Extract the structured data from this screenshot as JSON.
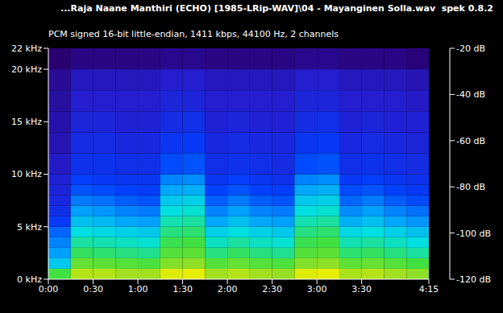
{
  "chart_data": {
    "type": "heatmap",
    "title": "...Raja Naane Manthiri (ECHO) [1985-LRip-WAV]\\04 - Mayanginen Solla.wav",
    "software": "spek 0.8.2",
    "subtitle": "PCM signed 16-bit little-endian, 1411 kbps, 44100 Hz, 2 channels",
    "xlim": [
      0,
      255
    ],
    "xticks": [
      {
        "value": 0,
        "label": "0:00"
      },
      {
        "value": 30,
        "label": "0:30"
      },
      {
        "value": 60,
        "label": "1:00"
      },
      {
        "value": 90,
        "label": "1:30"
      },
      {
        "value": 120,
        "label": "2:00"
      },
      {
        "value": 150,
        "label": "2:30"
      },
      {
        "value": 180,
        "label": "3:00"
      },
      {
        "value": 210,
        "label": "3:30"
      },
      {
        "value": 255,
        "label": "4:15"
      }
    ],
    "ylim": [
      0,
      22
    ],
    "yticks": [
      {
        "value": 0,
        "label": "0 kHz"
      },
      {
        "value": 5,
        "label": "5 kHz"
      },
      {
        "value": 10,
        "label": "10 kHz"
      },
      {
        "value": 15,
        "label": "15 kHz"
      },
      {
        "value": 20,
        "label": "20 kHz"
      },
      {
        "value": 22,
        "label": "22 kHz"
      }
    ],
    "x_bins": [
      0,
      15,
      30,
      45,
      60,
      75,
      90,
      105,
      120,
      135,
      150,
      165,
      180,
      195,
      210,
      225,
      240,
      255
    ],
    "y_bins": [
      0,
      1,
      2,
      3,
      4,
      5,
      6,
      7,
      8,
      9,
      10,
      12,
      14,
      16,
      18,
      20,
      22
    ],
    "cells": [
      [
        -62,
        -75,
        -80,
        -83,
        -86,
        -92,
        -95,
        -97,
        -98,
        -99,
        -101,
        -103,
        -104,
        -105,
        -106,
        -110
      ],
      [
        -50,
        -58,
        -64,
        -68,
        -72,
        -76,
        -80,
        -84,
        -88,
        -91,
        -94,
        -96,
        -98,
        -100,
        -102,
        -108
      ],
      [
        -50,
        -59,
        -65,
        -69,
        -73,
        -77,
        -81,
        -85,
        -89,
        -92,
        -94,
        -96,
        -98,
        -100,
        -102,
        -108
      ],
      [
        -52,
        -60,
        -66,
        -70,
        -74,
        -79,
        -83,
        -87,
        -90,
        -93,
        -95,
        -97,
        -99,
        -100,
        -102,
        -108
      ],
      [
        -52,
        -61,
        -67,
        -71,
        -75,
        -80,
        -84,
        -88,
        -91,
        -93,
        -95,
        -97,
        -99,
        -100,
        -102,
        -108
      ],
      [
        -46,
        -55,
        -60,
        -63,
        -66,
        -69,
        -72,
        -75,
        -79,
        -83,
        -89,
        -93,
        -96,
        -98,
        -100,
        -107
      ],
      [
        -45,
        -54,
        -59,
        -62,
        -65,
        -68,
        -71,
        -74,
        -78,
        -82,
        -88,
        -92,
        -95,
        -98,
        -100,
        -107
      ],
      [
        -52,
        -60,
        -66,
        -70,
        -74,
        -79,
        -83,
        -87,
        -90,
        -93,
        -95,
        -97,
        -99,
        -100,
        -102,
        -108
      ],
      [
        -50,
        -58,
        -64,
        -68,
        -72,
        -76,
        -80,
        -84,
        -88,
        -91,
        -94,
        -96,
        -98,
        -100,
        -102,
        -108
      ],
      [
        -52,
        -60,
        -66,
        -70,
        -74,
        -79,
        -83,
        -87,
        -90,
        -93,
        -95,
        -97,
        -99,
        -100,
        -102,
        -108
      ],
      [
        -53,
        -61,
        -67,
        -71,
        -75,
        -80,
        -84,
        -88,
        -91,
        -94,
        -96,
        -97,
        -99,
        -100,
        -102,
        -108
      ],
      [
        -46,
        -55,
        -60,
        -63,
        -66,
        -69,
        -72,
        -75,
        -79,
        -83,
        -89,
        -93,
        -96,
        -98,
        -100,
        -107
      ],
      [
        -45,
        -54,
        -59,
        -62,
        -65,
        -68,
        -71,
        -74,
        -78,
        -82,
        -88,
        -92,
        -95,
        -98,
        -100,
        -107
      ],
      [
        -51,
        -59,
        -65,
        -69,
        -73,
        -78,
        -82,
        -86,
        -89,
        -92,
        -95,
        -97,
        -99,
        -100,
        -102,
        -108
      ],
      [
        -50,
        -58,
        -64,
        -68,
        -72,
        -76,
        -80,
        -84,
        -88,
        -91,
        -94,
        -96,
        -98,
        -100,
        -102,
        -108
      ],
      [
        -52,
        -60,
        -66,
        -70,
        -74,
        -79,
        -83,
        -87,
        -90,
        -93,
        -95,
        -97,
        -99,
        -100,
        -102,
        -108
      ],
      [
        -54,
        -62,
        -68,
        -72,
        -76,
        -81,
        -85,
        -89,
        -92,
        -94,
        -96,
        -98,
        -99,
        -101,
        -103,
        -109
      ]
    ],
    "color_range": [
      -120,
      -20
    ],
    "color_ticks": [
      {
        "value": -20,
        "label": "-20 dB"
      },
      {
        "value": -40,
        "label": "-40 dB"
      },
      {
        "value": -60,
        "label": "-60 dB"
      },
      {
        "value": -80,
        "label": "-80 dB"
      },
      {
        "value": -100,
        "label": "-100 dB"
      },
      {
        "value": -120,
        "label": "-120 dB"
      }
    ]
  }
}
